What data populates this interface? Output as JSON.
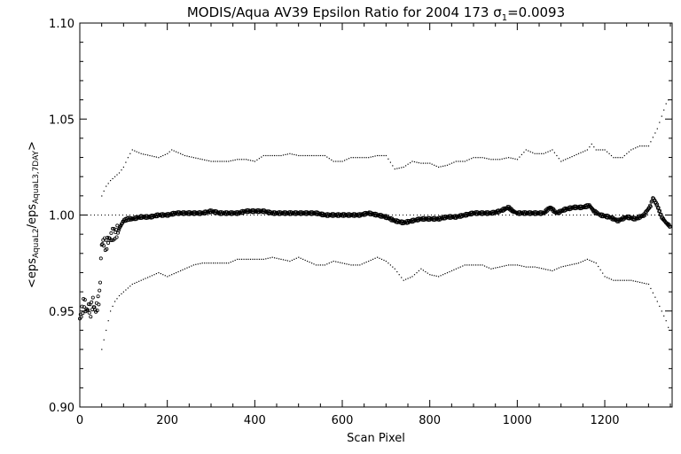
{
  "chart_data": {
    "type": "scatter",
    "title_main": "MODIS/Aqua AV39 Epsilon Ratio for 2004 173 ",
    "title_sigma": "σ",
    "title_sigma_sub": "1",
    "title_value": "=0.0093",
    "xlabel": "Scan Pixel",
    "ylabel_parts": {
      "open": "<eps",
      "sub1": "AquaL2",
      "mid": "/eps",
      "sub2": "AquaL3,7DAY",
      "close": ">"
    },
    "xlim": [
      0,
      1354
    ],
    "ylim": [
      0.9,
      1.1
    ],
    "x_ticks": [
      0,
      200,
      400,
      600,
      800,
      1000,
      1200
    ],
    "x_tick_labels": [
      "0",
      "200",
      "400",
      "600",
      "800",
      "1000",
      "1200"
    ],
    "y_ticks": [
      0.9,
      0.95,
      1.0,
      1.05,
      1.1
    ],
    "y_tick_labels": [
      "0.90",
      "0.95",
      "1.00",
      "1.05",
      "1.10"
    ],
    "reference_line": 1.0,
    "series": [
      {
        "role": "mean",
        "x": [
          0,
          5,
          10,
          15,
          20,
          25,
          30,
          35,
          40,
          45,
          50,
          55,
          60,
          65,
          70,
          75,
          80,
          90,
          100,
          110,
          120,
          140,
          160,
          180,
          200,
          220,
          240,
          260,
          280,
          300,
          320,
          340,
          360,
          380,
          400,
          420,
          440,
          460,
          480,
          500,
          520,
          540,
          560,
          580,
          600,
          620,
          640,
          660,
          680,
          700,
          720,
          740,
          760,
          780,
          800,
          820,
          840,
          860,
          880,
          900,
          920,
          940,
          960,
          980,
          990,
          1000,
          1020,
          1040,
          1060,
          1075,
          1090,
          1110,
          1130,
          1150,
          1165,
          1175,
          1190,
          1210,
          1230,
          1250,
          1270,
          1290,
          1305,
          1310,
          1320,
          1330,
          1340,
          1350
        ],
        "y": [
          0.946,
          0.95,
          0.955,
          0.95,
          0.952,
          0.95,
          0.955,
          0.95,
          0.953,
          0.958,
          0.985,
          0.986,
          0.984,
          0.987,
          0.988,
          0.99,
          0.99,
          0.993,
          0.997,
          0.998,
          0.998,
          0.999,
          0.999,
          1.0,
          1.0,
          1.001,
          1.001,
          1.001,
          1.001,
          1.002,
          1.001,
          1.001,
          1.001,
          1.002,
          1.002,
          1.002,
          1.001,
          1.001,
          1.001,
          1.001,
          1.001,
          1.001,
          1.0,
          1.0,
          1.0,
          1.0,
          1.0,
          1.001,
          1.0,
          0.999,
          0.997,
          0.996,
          0.997,
          0.998,
          0.998,
          0.998,
          0.999,
          0.999,
          1.0,
          1.001,
          1.001,
          1.001,
          1.002,
          1.004,
          1.002,
          1.001,
          1.001,
          1.001,
          1.001,
          1.004,
          1.001,
          1.003,
          1.004,
          1.004,
          1.005,
          1.002,
          1.0,
          0.999,
          0.997,
          0.999,
          0.998,
          1.0,
          1.005,
          1.009,
          1.005,
          0.999,
          0.996,
          0.994
        ]
      },
      {
        "role": "upper",
        "x": [
          50,
          60,
          70,
          80,
          90,
          100,
          110,
          120,
          140,
          160,
          180,
          200,
          210,
          220,
          240,
          260,
          280,
          300,
          320,
          340,
          360,
          380,
          400,
          420,
          440,
          460,
          480,
          500,
          520,
          540,
          560,
          580,
          600,
          620,
          640,
          660,
          680,
          700,
          720,
          740,
          760,
          780,
          800,
          820,
          840,
          860,
          880,
          900,
          920,
          940,
          960,
          980,
          1000,
          1020,
          1040,
          1060,
          1080,
          1100,
          1120,
          1140,
          1160,
          1170,
          1180,
          1200,
          1220,
          1240,
          1260,
          1280,
          1300,
          1320,
          1340,
          1350
        ],
        "y": [
          1.01,
          1.015,
          1.018,
          1.02,
          1.022,
          1.025,
          1.03,
          1.034,
          1.032,
          1.031,
          1.03,
          1.032,
          1.034,
          1.033,
          1.031,
          1.03,
          1.029,
          1.028,
          1.028,
          1.028,
          1.029,
          1.029,
          1.028,
          1.031,
          1.031,
          1.031,
          1.032,
          1.031,
          1.031,
          1.031,
          1.031,
          1.028,
          1.028,
          1.03,
          1.03,
          1.03,
          1.031,
          1.031,
          1.024,
          1.025,
          1.028,
          1.027,
          1.027,
          1.025,
          1.026,
          1.028,
          1.028,
          1.03,
          1.03,
          1.029,
          1.029,
          1.03,
          1.029,
          1.034,
          1.032,
          1.032,
          1.034,
          1.028,
          1.03,
          1.032,
          1.034,
          1.037,
          1.034,
          1.034,
          1.03,
          1.03,
          1.034,
          1.036,
          1.036,
          1.045,
          1.058,
          1.062
        ]
      },
      {
        "role": "lower",
        "x": [
          50,
          60,
          70,
          80,
          90,
          100,
          110,
          120,
          140,
          160,
          180,
          200,
          220,
          240,
          260,
          280,
          300,
          320,
          340,
          360,
          380,
          400,
          420,
          440,
          460,
          480,
          500,
          520,
          540,
          560,
          580,
          600,
          620,
          640,
          660,
          680,
          700,
          720,
          740,
          760,
          780,
          800,
          820,
          840,
          860,
          880,
          900,
          920,
          940,
          960,
          980,
          1000,
          1020,
          1040,
          1060,
          1080,
          1100,
          1120,
          1140,
          1160,
          1170,
          1180,
          1200,
          1220,
          1240,
          1260,
          1280,
          1300,
          1320,
          1340,
          1350
        ],
        "y": [
          0.93,
          0.94,
          0.95,
          0.955,
          0.958,
          0.96,
          0.962,
          0.964,
          0.966,
          0.968,
          0.97,
          0.968,
          0.97,
          0.972,
          0.974,
          0.975,
          0.975,
          0.975,
          0.975,
          0.977,
          0.977,
          0.977,
          0.977,
          0.978,
          0.977,
          0.976,
          0.978,
          0.976,
          0.974,
          0.974,
          0.976,
          0.975,
          0.974,
          0.974,
          0.976,
          0.978,
          0.976,
          0.972,
          0.966,
          0.968,
          0.972,
          0.969,
          0.968,
          0.97,
          0.972,
          0.974,
          0.974,
          0.974,
          0.972,
          0.973,
          0.974,
          0.974,
          0.973,
          0.973,
          0.972,
          0.971,
          0.973,
          0.974,
          0.975,
          0.977,
          0.976,
          0.975,
          0.968,
          0.966,
          0.966,
          0.966,
          0.965,
          0.964,
          0.955,
          0.945,
          0.938
        ]
      }
    ]
  }
}
